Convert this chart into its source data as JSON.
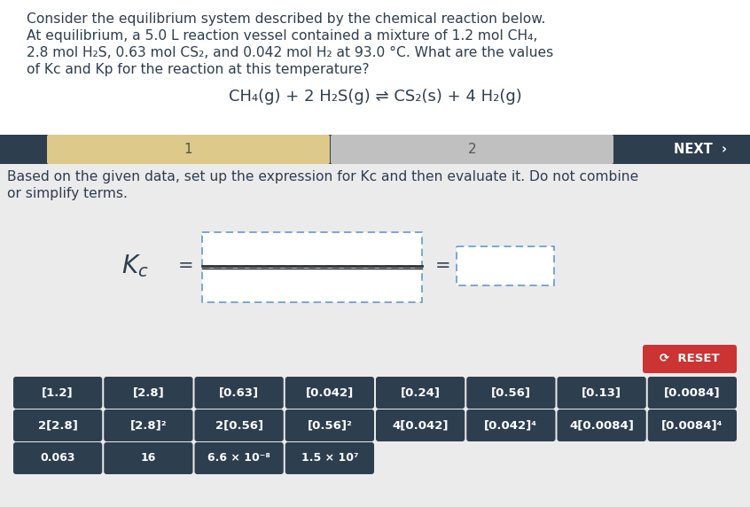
{
  "bg_color": "#ebebeb",
  "white_bg": "#ffffff",
  "header_text_color": "#2d3e50",
  "body_text_color": "#2d3e50",
  "paragraph": [
    "Consider the equilibrium system described by the chemical reaction below.",
    "At equilibrium, a 5.0 L reaction vessel contained a mixture of 1.2 mol CH₄,",
    "2.8 mol H₂S, 0.63 mol CS₂, and 0.042 mol H₂ at 93.0 °C. What are the values",
    "of Kc and Kp for the reaction at this temperature?"
  ],
  "equation": "CH₄(g) + 2 H₂S(g) ⇌ CS₂(s) + 4 H₂(g)",
  "tab1_label": "1",
  "tab2_label": "2",
  "next_label": "NEXT  ›",
  "instruction_line1": "Based on the given data, set up the expression for Kc and then evaluate it. Do not combine",
  "instruction_line2": "or simplify terms.",
  "reset_label": "⟳  RESET",
  "reset_bg": "#cc3333",
  "reset_text": "#ffffff",
  "button_bg": "#2d3e4f",
  "button_text": "#ffffff",
  "tab_active_bg": "#ddc98a",
  "tab_inactive_bg": "#c0c0c0",
  "tab_bar_bg": "#2d3e4f",
  "dashed_color": "#6699cc",
  "fraction_line_color": "#333333",
  "buttons_row1": [
    "[1.2]",
    "[2.8]",
    "[0.63]",
    "[0.042]",
    "[0.24]",
    "[0.56]",
    "[0.13]",
    "[0.0084]"
  ],
  "buttons_row2": [
    "2[2.8]",
    "[2.8]²",
    "2[0.56]",
    "[0.56]²",
    "4[0.042]",
    "[0.042]⁴",
    "4[0.0084]",
    "[0.0084]⁴"
  ],
  "buttons_row3": [
    "0.063",
    "16",
    "6.6 × 10⁻⁸",
    "1.5 × 10⁷"
  ],
  "fig_width": 8.46,
  "fig_height": 5.72,
  "dpi": 100
}
